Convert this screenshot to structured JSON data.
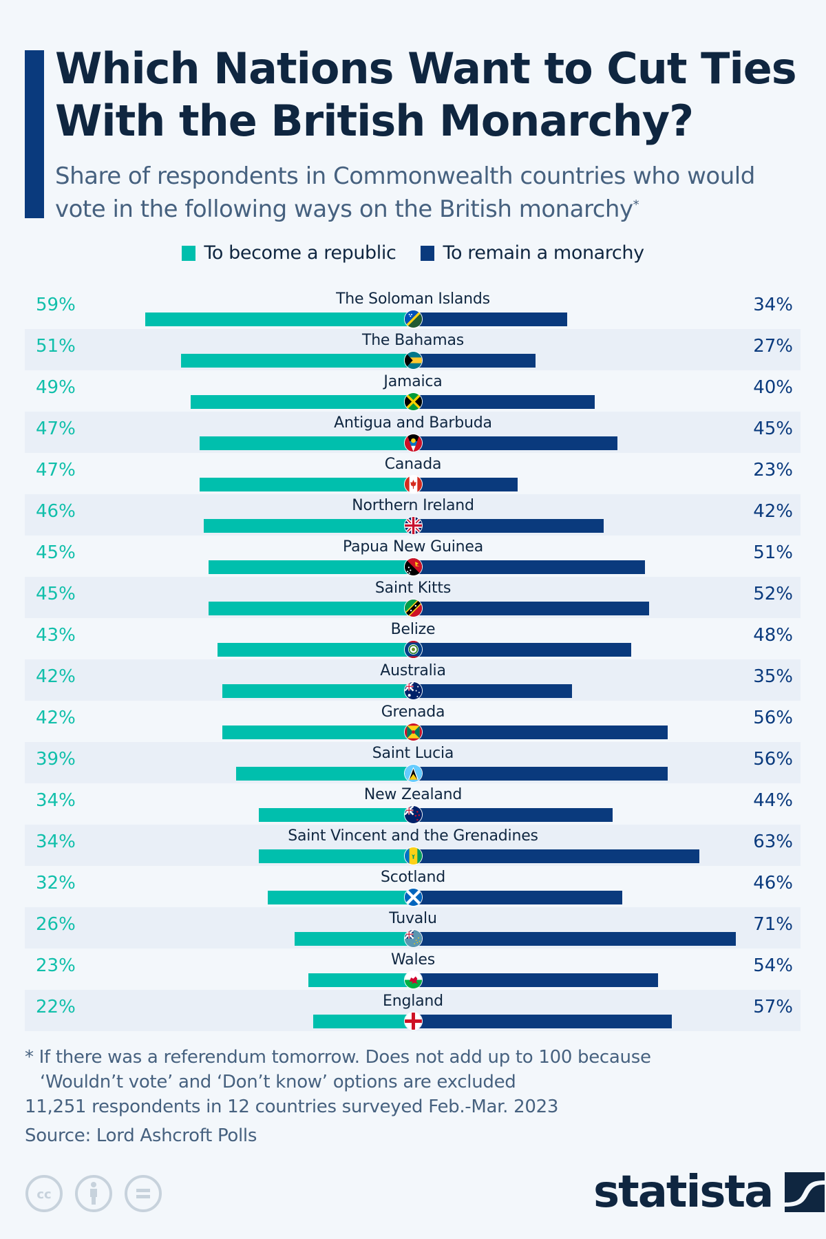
{
  "header": {
    "title": "Which Nations Want to Cut Ties With the British Monarchy?",
    "subtitle": "Share of respondents in Commonwealth countries who would vote in the following ways on the British monarchy",
    "subtitle_mark": "*"
  },
  "colors": {
    "republic": "#00bfad",
    "monarchy": "#0a3a7d",
    "accent": "#0a3a7d",
    "title": "#0f2640",
    "subtitle": "#46617f",
    "row_alt": "#e9eff7",
    "background": "#f3f7fb"
  },
  "chart_data": {
    "type": "bar",
    "orientation": "horizontal-diverging",
    "title": "Which Nations Want to Cut Ties With the British Monarchy?",
    "subtitle": "Share of respondents in Commonwealth countries who would vote in the following ways on the British monarchy*",
    "unit": "%",
    "legend": [
      "To become a republic",
      "To remain a monarchy"
    ],
    "legend_position": "top-center",
    "categories": [
      "The Soloman Islands",
      "The Bahamas",
      "Jamaica",
      "Antigua and Barbuda",
      "Canada",
      "Northern Ireland",
      "Papua New Guinea",
      "Saint Kitts",
      "Belize",
      "Australia",
      "Grenada",
      "Saint Lucia",
      "New Zealand",
      "Saint Vincent and the Grenadines",
      "Scotland",
      "Tuvalu",
      "Wales",
      "England"
    ],
    "flags": [
      "solomon-islands-flag-icon",
      "bahamas-flag-icon",
      "jamaica-flag-icon",
      "antigua-barbuda-flag-icon",
      "canada-flag-icon",
      "uk-flag-icon",
      "papua-new-guinea-flag-icon",
      "saint-kitts-flag-icon",
      "belize-flag-icon",
      "australia-flag-icon",
      "grenada-flag-icon",
      "saint-lucia-flag-icon",
      "new-zealand-flag-icon",
      "saint-vincent-flag-icon",
      "scotland-flag-icon",
      "tuvalu-flag-icon",
      "wales-flag-icon",
      "england-flag-icon"
    ],
    "series": [
      {
        "name": "To become a republic",
        "values": [
          59,
          51,
          49,
          47,
          47,
          46,
          45,
          45,
          43,
          42,
          42,
          39,
          34,
          34,
          32,
          26,
          23,
          22
        ]
      },
      {
        "name": "To remain a monarchy",
        "values": [
          34,
          27,
          40,
          45,
          23,
          42,
          51,
          52,
          48,
          35,
          56,
          56,
          44,
          63,
          46,
          71,
          54,
          57
        ]
      }
    ],
    "labels_left": [
      "59%",
      "51%",
      "49%",
      "47%",
      "47%",
      "46%",
      "45%",
      "45%",
      "43%",
      "42%",
      "42%",
      "39%",
      "34%",
      "34%",
      "32%",
      "26%",
      "23%",
      "22%"
    ],
    "labels_right": [
      "34%",
      "27%",
      "40%",
      "45%",
      "23%",
      "42%",
      "51%",
      "52%",
      "48%",
      "35%",
      "56%",
      "56%",
      "44%",
      "63%",
      "46%",
      "71%",
      "54%",
      "57%"
    ],
    "xlim": [
      0,
      100
    ],
    "grid": false
  },
  "footer": {
    "note_line1": "* If there was a referendum tomorrow. Does not add up to 100 because",
    "note_line2": "‘Wouldn’t vote’ and ‘Don’t know’ options are excluded",
    "survey": "11,251 respondents in 12 countries surveyed Feb.-Mar. 2023",
    "source": "Source: Lord Ashcroft Polls",
    "license_icons": [
      "cc-icon",
      "attribution-icon",
      "no-derivatives-icon"
    ],
    "logo_text": "statista"
  }
}
